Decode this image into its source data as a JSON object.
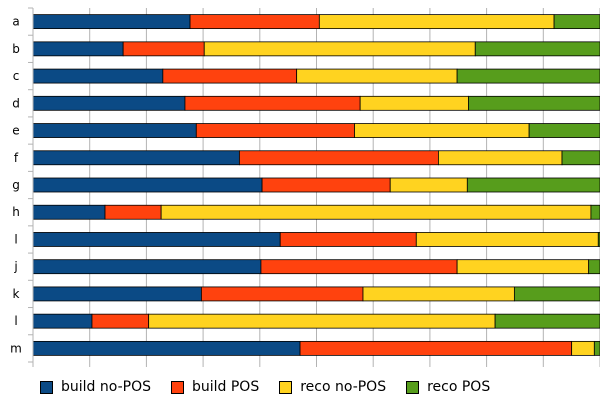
{
  "chart_data": {
    "type": "bar",
    "orientation": "horizontal",
    "stacked": true,
    "normalized": true,
    "categories": [
      "a",
      "b",
      "c",
      "d",
      "e",
      "f",
      "g",
      "h",
      "l",
      "j",
      "k",
      "l",
      "m"
    ],
    "series": [
      {
        "name": "build no-POS",
        "color": "#0b4a85",
        "values": [
          0.277,
          0.159,
          0.229,
          0.268,
          0.288,
          0.364,
          0.404,
          0.127,
          0.436,
          0.402,
          0.297,
          0.104,
          0.471
        ]
      },
      {
        "name": "build POS",
        "color": "#ff420e",
        "values": [
          0.228,
          0.143,
          0.236,
          0.309,
          0.279,
          0.351,
          0.226,
          0.099,
          0.24,
          0.346,
          0.285,
          0.1,
          0.479
        ]
      },
      {
        "name": "reco no-POS",
        "color": "#ffd320",
        "values": [
          0.414,
          0.478,
          0.283,
          0.191,
          0.308,
          0.218,
          0.136,
          0.758,
          0.321,
          0.232,
          0.267,
          0.611,
          0.04
        ]
      },
      {
        "name": "reco POS",
        "color": "#579d1c",
        "values": [
          0.081,
          0.22,
          0.252,
          0.232,
          0.125,
          0.067,
          0.234,
          0.016,
          0.003,
          0.02,
          0.151,
          0.185,
          0.01
        ]
      }
    ],
    "xlim": [
      0,
      1
    ],
    "grid": true,
    "legend_position": "bottom"
  }
}
